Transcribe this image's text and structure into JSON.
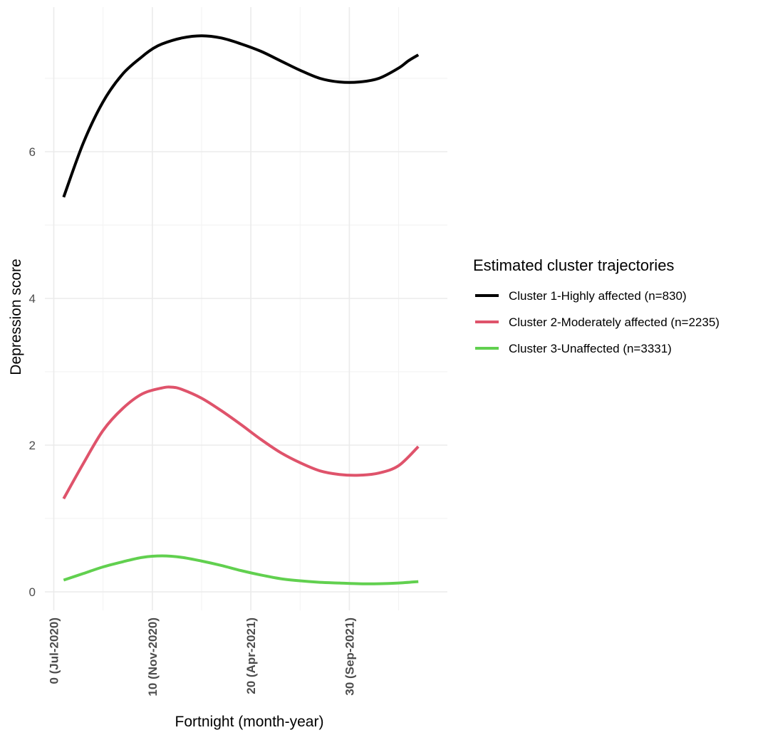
{
  "chart_data": {
    "type": "line",
    "title": "",
    "xlabel": "Fortnight (month-year)",
    "ylabel": "Depression score",
    "xlim": [
      -0.2,
      40.2
    ],
    "ylim": [
      -0.35,
      8.2
    ],
    "x_ticks": [
      {
        "value": 0,
        "label": "0 (Jul-2020)"
      },
      {
        "value": 10,
        "label": "10 (Nov-2020)"
      },
      {
        "value": 20,
        "label": "20 (Apr-2021)"
      },
      {
        "value": 30,
        "label": "30 (Sep-2021)"
      }
    ],
    "y_ticks": [
      {
        "value": 0,
        "label": "0"
      },
      {
        "value": 2,
        "label": "2"
      },
      {
        "value": 4,
        "label": "4"
      },
      {
        "value": 6,
        "label": "6"
      }
    ],
    "grid": true,
    "legend": {
      "title": "Estimated cluster trajectories",
      "placement": "right"
    },
    "series": [
      {
        "name": "Cluster 1-Highly affected (n=830)",
        "color": "#000000",
        "x": [
          1,
          3,
          5,
          7,
          9,
          10,
          11,
          13,
          15,
          17,
          19,
          21,
          23,
          25,
          27,
          29,
          31,
          33,
          35,
          36,
          37
        ],
        "y": [
          5.38,
          6.12,
          6.68,
          7.06,
          7.3,
          7.4,
          7.47,
          7.55,
          7.58,
          7.55,
          7.47,
          7.37,
          7.24,
          7.11,
          7.0,
          6.95,
          6.95,
          7.0,
          7.14,
          7.24,
          7.32
        ]
      },
      {
        "name": "Cluster 2-Moderately affected (n=2235)",
        "color": "#df536b",
        "x": [
          1,
          3,
          5,
          7,
          9,
          11,
          12,
          13,
          15,
          17,
          19,
          21,
          23,
          25,
          27,
          29,
          31,
          33,
          35,
          37
        ],
        "y": [
          1.27,
          1.75,
          2.2,
          2.5,
          2.7,
          2.78,
          2.79,
          2.76,
          2.64,
          2.47,
          2.28,
          2.08,
          1.9,
          1.76,
          1.65,
          1.6,
          1.59,
          1.62,
          1.72,
          1.98
        ]
      },
      {
        "name": "Cluster 3-Unaffected (n=3331)",
        "color": "#61d04f",
        "x": [
          1,
          3,
          5,
          7,
          9,
          11,
          13,
          15,
          17,
          19,
          21,
          23,
          25,
          27,
          29,
          31,
          33,
          35,
          37
        ],
        "y": [
          0.16,
          0.25,
          0.34,
          0.41,
          0.47,
          0.49,
          0.47,
          0.42,
          0.36,
          0.29,
          0.23,
          0.18,
          0.15,
          0.13,
          0.12,
          0.11,
          0.11,
          0.12,
          0.14
        ]
      }
    ]
  }
}
